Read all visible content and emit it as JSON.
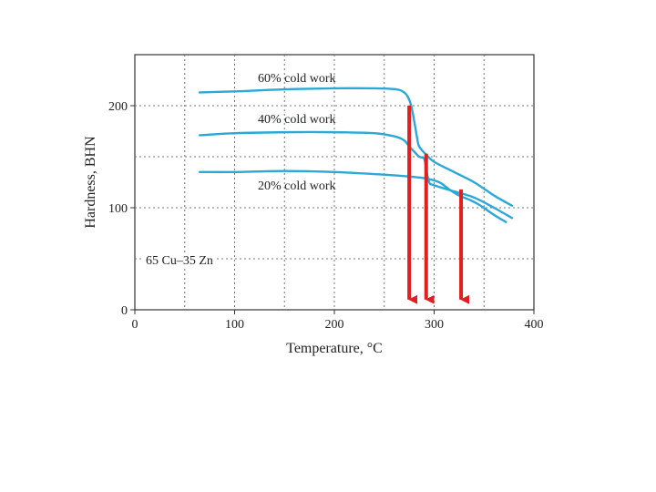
{
  "chart_data": {
    "type": "line",
    "title": "",
    "xlabel": "Temperature, °C",
    "ylabel": "Hardness, BHN",
    "xlim": [
      0,
      400
    ],
    "ylim": [
      0,
      250
    ],
    "xticks": [
      0,
      100,
      200,
      300,
      400
    ],
    "yticks": [
      0,
      100,
      200
    ],
    "grid": true,
    "series": [
      {
        "name": "60% cold work",
        "label": "60% cold work",
        "color": "#2aa8d8",
        "x": [
          65,
          100,
          150,
          200,
          240,
          262,
          270,
          274,
          277,
          280,
          283,
          285,
          292,
          300,
          320,
          340,
          360,
          378
        ],
        "y": [
          213,
          214,
          216,
          217,
          217,
          216,
          213,
          208,
          200,
          185,
          168,
          160,
          152,
          145,
          135,
          125,
          112,
          102
        ]
      },
      {
        "name": "40% cold work",
        "label": "40% cold work",
        "color": "#2aa8d8",
        "x": [
          65,
          100,
          150,
          200,
          240,
          260,
          270,
          275,
          280,
          285,
          290,
          292,
          295,
          300,
          320,
          340,
          360,
          378
        ],
        "y": [
          171,
          173,
          174,
          174,
          173,
          170,
          166,
          160,
          155,
          150,
          148,
          138,
          125,
          122,
          116,
          110,
          100,
          90
        ]
      },
      {
        "name": "20% cold work",
        "label": "20% cold work",
        "color": "#2aa8d8",
        "x": [
          65,
          100,
          150,
          200,
          240,
          270,
          290,
          305,
          315,
          325,
          335,
          345,
          360,
          372
        ],
        "y": [
          135,
          135,
          136,
          135,
          133,
          131,
          129,
          125,
          118,
          112,
          108,
          103,
          93,
          86
        ]
      }
    ],
    "annotations": {
      "alloy": "65 Cu–35 Zn"
    },
    "markers": [
      {
        "type": "arrow",
        "color": "#e02020",
        "x": 275,
        "y_from": 200,
        "y_to": 10
      },
      {
        "type": "arrow",
        "color": "#e02020",
        "x": 292,
        "y_from": 153,
        "y_to": 10
      },
      {
        "type": "arrow",
        "color": "#e02020",
        "x": 327,
        "y_from": 118,
        "y_to": 10
      }
    ]
  }
}
